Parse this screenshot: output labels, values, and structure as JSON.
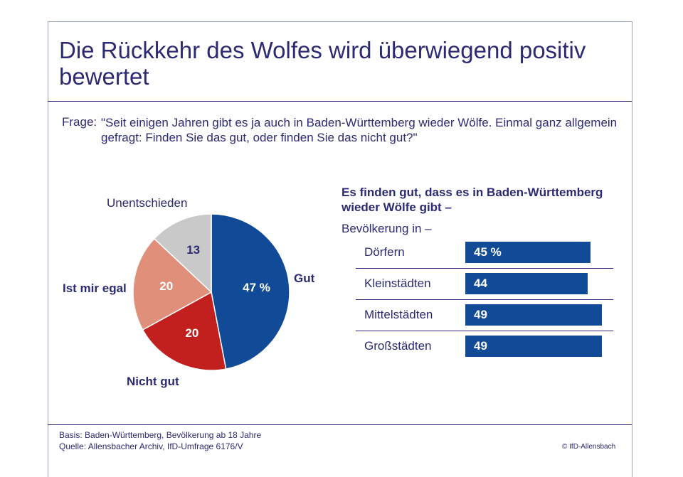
{
  "title": "Die Rückkehr des Wolfes wird überwiegend positiv bewertet",
  "question_label": "Frage:",
  "question_text": "\"Seit einigen Jahren gibt es ja auch in Baden-Württemberg wieder Wölfe. Einmal ganz allgemein gefragt: Finden Sie das gut, oder finden Sie das nicht gut?\"",
  "chart_data": [
    {
      "type": "pie",
      "slices": [
        {
          "label": "Gut",
          "value": 47,
          "display": "47 %",
          "color": "#114b98"
        },
        {
          "label": "Nicht gut",
          "value": 20,
          "display": "20",
          "color": "#c21f1f"
        },
        {
          "label": "Ist mir egal",
          "value": 20,
          "display": "20",
          "color": "#e0907a"
        },
        {
          "label": "Unentschieden",
          "value": 13,
          "display": "13",
          "color": "#c9c9c9"
        }
      ]
    },
    {
      "type": "bar",
      "title": "Es finden gut, dass es in Baden-Württemberg wieder Wölfe gibt –",
      "subtitle": "Bevölkerung in –",
      "categories": [
        "Dörfern",
        "Kleinstädten",
        "Mittelstädten",
        "Großstädten"
      ],
      "values": [
        45,
        44,
        49,
        49
      ],
      "labels": [
        "45 %",
        "44",
        "49",
        "49"
      ],
      "color": "#114b98"
    }
  ],
  "footer": {
    "basis": "Basis: Baden-Württemberg, Bevölkerung ab 18 Jahre",
    "source": "Quelle: Allensbacher Archiv, IfD-Umfrage 6176/V",
    "copyright": "© IfD-Allensbach"
  }
}
